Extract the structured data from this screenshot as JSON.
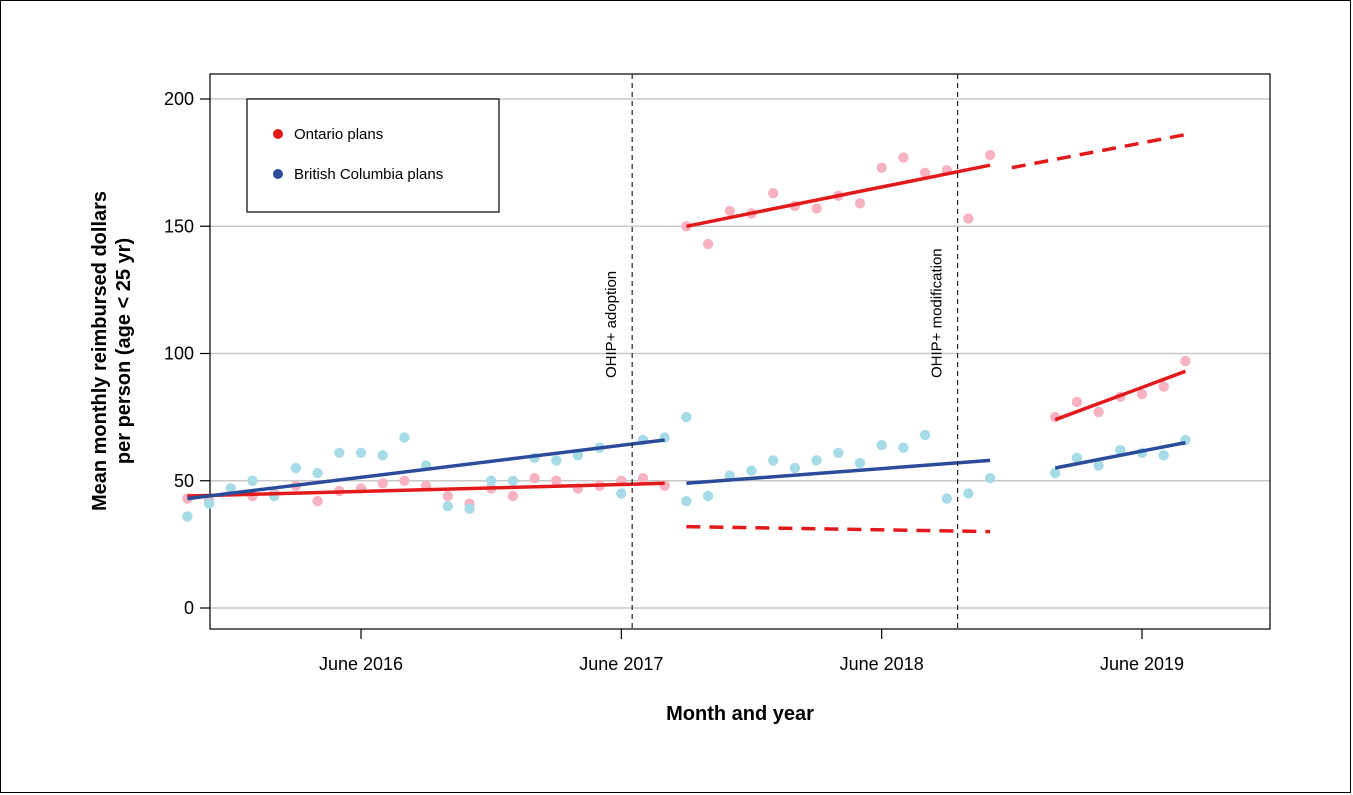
{
  "chart_data": {
    "type": "scatter",
    "xlabel": "Month and year",
    "ylabel_line1": "Mean monthly reimbursed dollars",
    "ylabel_line2": "per person (age < 25 yr)",
    "ylim": [
      0,
      200
    ],
    "yticks": [
      0,
      50,
      100,
      150,
      200
    ],
    "xticks": [
      {
        "label": "June 2016",
        "month": 6
      },
      {
        "label": "June 2017",
        "month": 18
      },
      {
        "label": "June 2018",
        "month": 30
      },
      {
        "label": "June 2019",
        "month": 42
      }
    ],
    "x_units": "months since Jan 2016",
    "grid": true,
    "legend": {
      "placement": "top-left",
      "entries": [
        {
          "label": "Ontario plans",
          "color": "#e31a1c"
        },
        {
          "label": "British Columbia plans",
          "color": "#2b4c9b"
        }
      ]
    },
    "events": [
      {
        "label": "OHIP+ adoption",
        "month": 18.5
      },
      {
        "label": "OHIP+ modification",
        "month": 33.5
      }
    ],
    "series": [
      {
        "name": "Ontario plans",
        "color": "#f7b3c2",
        "points": [
          [
            -2,
            43
          ],
          [
            -1,
            42
          ],
          [
            0,
            47
          ],
          [
            1,
            44
          ],
          [
            2,
            45
          ],
          [
            3,
            48
          ],
          [
            4,
            42
          ],
          [
            5,
            46
          ],
          [
            6,
            47
          ],
          [
            7,
            49
          ],
          [
            8,
            50
          ],
          [
            9,
            48
          ],
          [
            10,
            44
          ],
          [
            11,
            41
          ],
          [
            12,
            47
          ],
          [
            13,
            44
          ],
          [
            14,
            51
          ],
          [
            15,
            50
          ],
          [
            16,
            47
          ],
          [
            17,
            48
          ],
          [
            18,
            50
          ],
          [
            19,
            51
          ],
          [
            20,
            48
          ],
          [
            21,
            150
          ],
          [
            22,
            143
          ],
          [
            23,
            156
          ],
          [
            24,
            155
          ],
          [
            25,
            163
          ],
          [
            26,
            158
          ],
          [
            27,
            157
          ],
          [
            28,
            162
          ],
          [
            29,
            159
          ],
          [
            30,
            173
          ],
          [
            31,
            177
          ],
          [
            32,
            171
          ],
          [
            33,
            172
          ],
          [
            34,
            153
          ],
          [
            35,
            178
          ],
          [
            38,
            75
          ],
          [
            39,
            81
          ],
          [
            40,
            77
          ],
          [
            41,
            83
          ],
          [
            42,
            84
          ],
          [
            43,
            87
          ],
          [
            44,
            97
          ]
        ]
      },
      {
        "name": "British Columbia plans",
        "color": "#a7dbe8",
        "points": [
          [
            -2,
            36
          ],
          [
            -1,
            41
          ],
          [
            0,
            47
          ],
          [
            1,
            50
          ],
          [
            2,
            44
          ],
          [
            3,
            55
          ],
          [
            4,
            53
          ],
          [
            5,
            61
          ],
          [
            6,
            61
          ],
          [
            7,
            60
          ],
          [
            8,
            67
          ],
          [
            9,
            56
          ],
          [
            10,
            40
          ],
          [
            11,
            39
          ],
          [
            12,
            50
          ],
          [
            13,
            50
          ],
          [
            14,
            59
          ],
          [
            15,
            58
          ],
          [
            16,
            60
          ],
          [
            17,
            63
          ],
          [
            18,
            45
          ],
          [
            19,
            66
          ],
          [
            20,
            67
          ],
          [
            21,
            75
          ],
          [
            21,
            42
          ],
          [
            22,
            44
          ],
          [
            23,
            52
          ],
          [
            24,
            54
          ],
          [
            25,
            58
          ],
          [
            26,
            55
          ],
          [
            27,
            58
          ],
          [
            28,
            61
          ],
          [
            29,
            57
          ],
          [
            30,
            64
          ],
          [
            31,
            63
          ],
          [
            32,
            68
          ],
          [
            33,
            43
          ],
          [
            34,
            45
          ],
          [
            35,
            51
          ],
          [
            38,
            53
          ],
          [
            39,
            59
          ],
          [
            40,
            56
          ],
          [
            41,
            62
          ],
          [
            42,
            61
          ],
          [
            43,
            60
          ],
          [
            44,
            66
          ]
        ]
      }
    ],
    "fit_lines": [
      {
        "series": "Ontario plans",
        "style": "solid",
        "from": [
          -2,
          44
        ],
        "to": [
          20,
          49
        ]
      },
      {
        "series": "Ontario plans",
        "style": "solid",
        "from": [
          21,
          150
        ],
        "to": [
          35,
          174
        ]
      },
      {
        "series": "Ontario plans",
        "style": "dashed",
        "from": [
          21,
          32
        ],
        "to": [
          35,
          30
        ]
      },
      {
        "series": "Ontario plans",
        "style": "solid",
        "from": [
          38,
          74
        ],
        "to": [
          44,
          93
        ]
      },
      {
        "series": "Ontario plans",
        "style": "dashed",
        "from": [
          36,
          173
        ],
        "to": [
          44,
          186
        ]
      },
      {
        "series": "British Columbia plans",
        "style": "solid",
        "from": [
          -2,
          43
        ],
        "to": [
          20,
          66
        ]
      },
      {
        "series": "British Columbia plans",
        "style": "solid",
        "from": [
          21,
          49
        ],
        "to": [
          35,
          58
        ]
      },
      {
        "series": "British Columbia plans",
        "style": "solid",
        "from": [
          38,
          55
        ],
        "to": [
          44,
          65
        ]
      }
    ]
  }
}
